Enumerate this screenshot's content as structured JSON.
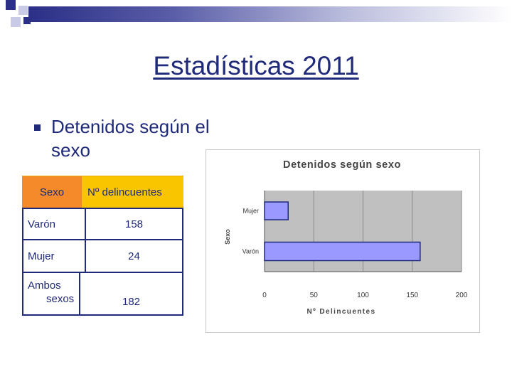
{
  "slide": {
    "title": "Estadísticas 2011",
    "bullet": "Detenidos según el sexo"
  },
  "table": {
    "headers": [
      "Sexo",
      "Nº delincuentes"
    ],
    "rows": [
      {
        "label": "Varón",
        "value": "158"
      },
      {
        "label": "Mujer",
        "value": "24"
      },
      {
        "label_line1": "Ambos",
        "label_line2": "sexos",
        "value": "182"
      }
    ]
  },
  "colors": {
    "title": "#1f2a7a",
    "header_orange": "#f58a2a",
    "header_yellow": "#f9c400",
    "bar_fill": "#9999ff",
    "plot_bg": "#c0c0c0"
  },
  "chart_data": {
    "type": "bar",
    "orientation": "horizontal",
    "title": "Detenidos según sexo",
    "xlabel": "Nº Delincuentes",
    "ylabel": "Sexo",
    "categories": [
      "Mujer",
      "Varón"
    ],
    "values": [
      24,
      158
    ],
    "xlim": [
      0,
      200
    ],
    "xticks": [
      0,
      50,
      100,
      150,
      200
    ],
    "grid": true,
    "legend": "none"
  }
}
